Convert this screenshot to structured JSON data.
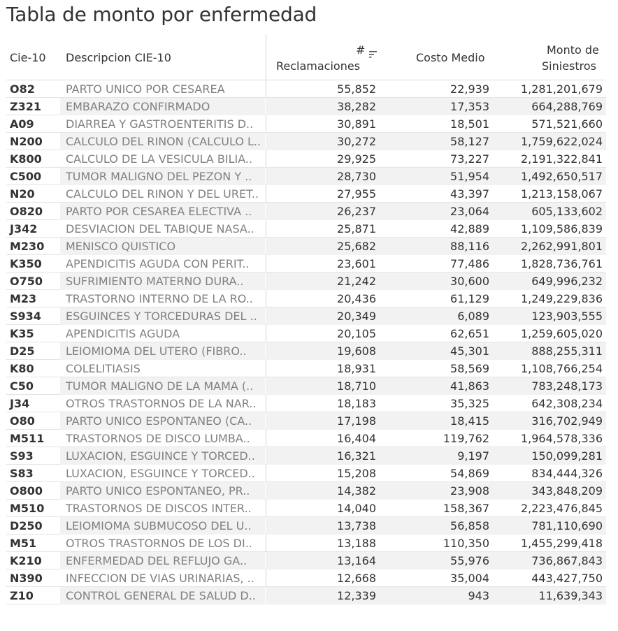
{
  "title": "Tabla de monto por enfermedad",
  "chart_data": {
    "type": "table",
    "title": "Tabla de monto por enfermedad",
    "columns": [
      "Cie-10",
      "Descripcion CIE-10",
      "# Reclamaciones",
      "Costo Medio",
      "Monto de Siniestros"
    ],
    "header": {
      "cie": "Cie-10",
      "desc": "Descripcion CIE-10",
      "recl_hash": "#",
      "recl": "Reclamaciones",
      "costo": "Costo Medio",
      "monto1": "Monto de",
      "monto2": "Siniestros"
    },
    "rows": [
      {
        "cie": "O82",
        "desc": "PARTO UNICO POR CESAREA",
        "recl": "55,852",
        "costo": "22,939",
        "monto": "1,281,201,679"
      },
      {
        "cie": "Z321",
        "desc": "EMBARAZO CONFIRMADO",
        "recl": "38,282",
        "costo": "17,353",
        "monto": "664,288,769"
      },
      {
        "cie": "A09",
        "desc": "DIARREA Y GASTROENTERITIS D..",
        "recl": "30,891",
        "costo": "18,501",
        "monto": "571,521,660"
      },
      {
        "cie": "N200",
        "desc": "CALCULO DEL RINON (CALCULO L..",
        "recl": "30,272",
        "costo": "58,127",
        "monto": "1,759,622,024"
      },
      {
        "cie": "K800",
        "desc": "CALCULO DE LA VESICULA BILIA..",
        "recl": "29,925",
        "costo": "73,227",
        "monto": "2,191,322,841"
      },
      {
        "cie": "C500",
        "desc": "TUMOR MALIGNO DEL PEZON Y ..",
        "recl": "28,730",
        "costo": "51,954",
        "monto": "1,492,650,517"
      },
      {
        "cie": "N20",
        "desc": "CALCULO DEL RINON Y DEL URET..",
        "recl": "27,955",
        "costo": "43,397",
        "monto": "1,213,158,067"
      },
      {
        "cie": "O820",
        "desc": "PARTO POR CESAREA ELECTIVA ..",
        "recl": "26,237",
        "costo": "23,064",
        "monto": "605,133,602"
      },
      {
        "cie": "J342",
        "desc": "DESVIACION DEL TABIQUE NASA..",
        "recl": "25,871",
        "costo": "42,889",
        "monto": "1,109,586,839"
      },
      {
        "cie": "M230",
        "desc": "MENISCO QUISTICO",
        "recl": "25,682",
        "costo": "88,116",
        "monto": "2,262,991,801"
      },
      {
        "cie": "K350",
        "desc": "APENDICITIS AGUDA CON PERIT..",
        "recl": "23,601",
        "costo": "77,486",
        "monto": "1,828,736,761"
      },
      {
        "cie": "O750",
        "desc": "SUFRIMIENTO MATERNO DURA..",
        "recl": "21,242",
        "costo": "30,600",
        "monto": "649,996,232"
      },
      {
        "cie": "M23",
        "desc": "TRASTORNO INTERNO DE LA RO..",
        "recl": "20,436",
        "costo": "61,129",
        "monto": "1,249,229,836"
      },
      {
        "cie": "S934",
        "desc": "ESGUINCES Y TORCEDURAS DEL ..",
        "recl": "20,349",
        "costo": "6,089",
        "monto": "123,903,555"
      },
      {
        "cie": "K35",
        "desc": "APENDICITIS AGUDA",
        "recl": "20,105",
        "costo": "62,651",
        "monto": "1,259,605,020"
      },
      {
        "cie": "D25",
        "desc": "LEIOMIOMA DEL UTERO (FIBRO..",
        "recl": "19,608",
        "costo": "45,301",
        "monto": "888,255,311"
      },
      {
        "cie": "K80",
        "desc": "COLELITIASIS",
        "recl": "18,931",
        "costo": "58,569",
        "monto": "1,108,766,254"
      },
      {
        "cie": "C50",
        "desc": "TUMOR MALIGNO DE LA MAMA (..",
        "recl": "18,710",
        "costo": "41,863",
        "monto": "783,248,173"
      },
      {
        "cie": "J34",
        "desc": "OTROS TRASTORNOS DE LA NAR..",
        "recl": "18,183",
        "costo": "35,325",
        "monto": "642,308,234"
      },
      {
        "cie": "O80",
        "desc": "PARTO UNICO ESPONTANEO (CA..",
        "recl": "17,198",
        "costo": "18,415",
        "monto": "316,702,949"
      },
      {
        "cie": "M511",
        "desc": "TRASTORNOS DE DISCO LUMBA..",
        "recl": "16,404",
        "costo": "119,762",
        "monto": "1,964,578,336"
      },
      {
        "cie": "S93",
        "desc": "LUXACION, ESGUINCE Y TORCED..",
        "recl": "16,321",
        "costo": "9,197",
        "monto": "150,099,281"
      },
      {
        "cie": "S83",
        "desc": "LUXACION, ESGUINCE Y TORCED..",
        "recl": "15,208",
        "costo": "54,869",
        "monto": "834,444,326"
      },
      {
        "cie": "O800",
        "desc": "PARTO UNICO ESPONTANEO, PR..",
        "recl": "14,382",
        "costo": "23,908",
        "monto": "343,848,209"
      },
      {
        "cie": "M510",
        "desc": "TRASTORNOS DE DISCOS INTER..",
        "recl": "14,040",
        "costo": "158,367",
        "monto": "2,223,476,845"
      },
      {
        "cie": "D250",
        "desc": "LEIOMIOMA SUBMUCOSO DEL U..",
        "recl": "13,738",
        "costo": "56,858",
        "monto": "781,110,690"
      },
      {
        "cie": "M51",
        "desc": "OTROS TRASTORNOS DE LOS DI..",
        "recl": "13,188",
        "costo": "110,350",
        "monto": "1,455,299,418"
      },
      {
        "cie": "K210",
        "desc": "ENFERMEDAD DEL REFLUJO GA..",
        "recl": "13,164",
        "costo": "55,976",
        "monto": "736,867,843"
      },
      {
        "cie": "N390",
        "desc": "INFECCION DE VIAS URINARIAS, ..",
        "recl": "12,668",
        "costo": "35,004",
        "monto": "443,427,750"
      },
      {
        "cie": "Z10",
        "desc": "CONTROL GENERAL DE SALUD D..",
        "recl": "12,339",
        "costo": "943",
        "monto": "11,639,343"
      }
    ],
    "sort": {
      "column": "# Reclamaciones",
      "order": "descending"
    },
    "row_banding": true
  },
  "colors": {
    "text": "#333333",
    "description_text": "#808080",
    "band_fill": "#f2f2f2",
    "grid_line": "#d9d9d9"
  }
}
